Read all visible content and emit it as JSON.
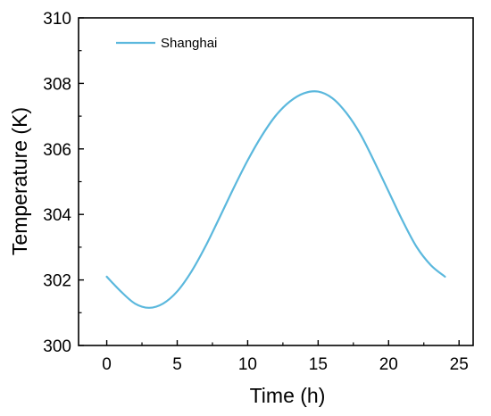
{
  "chart_data": {
    "type": "line",
    "title": "",
    "xlabel": "Time (h)",
    "ylabel": "Temperature (K)",
    "xlim": [
      -2,
      26
    ],
    "ylim": [
      300,
      310
    ],
    "x_ticks": [
      "0",
      "5",
      "10",
      "15",
      "20",
      "25"
    ],
    "y_ticks": [
      "300",
      "302",
      "304",
      "306",
      "308",
      "310"
    ],
    "grid": false,
    "legend_position": "top-left",
    "series": [
      {
        "name": "Shanghai",
        "color": "#5BB8DD",
        "x": [
          0,
          1,
          2,
          3,
          4,
          5,
          6,
          7,
          8,
          9,
          10,
          11,
          12,
          13,
          14,
          15,
          16,
          17,
          18,
          19,
          20,
          21,
          22,
          23,
          24
        ],
        "y": [
          302.1,
          301.65,
          301.28,
          301.15,
          301.28,
          301.65,
          302.25,
          303.02,
          303.9,
          304.8,
          305.65,
          306.4,
          307.02,
          307.45,
          307.7,
          307.75,
          307.55,
          307.1,
          306.45,
          305.6,
          304.7,
          303.8,
          303.0,
          302.45,
          302.1
        ]
      }
    ]
  }
}
